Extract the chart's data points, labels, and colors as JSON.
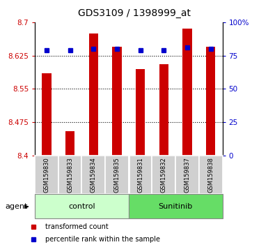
{
  "title": "GDS3109 / 1398999_at",
  "samples": [
    "GSM159830",
    "GSM159833",
    "GSM159834",
    "GSM159835",
    "GSM159831",
    "GSM159832",
    "GSM159837",
    "GSM159838"
  ],
  "bar_values": [
    8.585,
    8.455,
    8.675,
    8.645,
    8.595,
    8.605,
    8.685,
    8.645
  ],
  "percentile_values": [
    79,
    79,
    80,
    80,
    79,
    79,
    81,
    80
  ],
  "y_min": 8.4,
  "y_max": 8.7,
  "y_ticks": [
    8.4,
    8.475,
    8.55,
    8.625,
    8.7
  ],
  "y2_ticks": [
    0,
    25,
    50,
    75,
    100
  ],
  "y2_labels": [
    "0",
    "25",
    "50",
    "75",
    "100%"
  ],
  "bar_color": "#cc0000",
  "percentile_color": "#0000cc",
  "groups": [
    {
      "label": "control",
      "samples": [
        0,
        1,
        2,
        3
      ],
      "color": "#ccffcc"
    },
    {
      "label": "Sunitinib",
      "samples": [
        4,
        5,
        6,
        7
      ],
      "color": "#66dd66"
    }
  ],
  "group_label": "agent",
  "legend_bar_label": "transformed count",
  "legend_pct_label": "percentile rank within the sample",
  "tick_label_color_left": "#cc0000",
  "tick_label_color_right": "#0000cc",
  "bar_width": 0.4,
  "sample_box_color": "#d0d0d0",
  "grid_color": "black",
  "grid_linestyle": ":"
}
